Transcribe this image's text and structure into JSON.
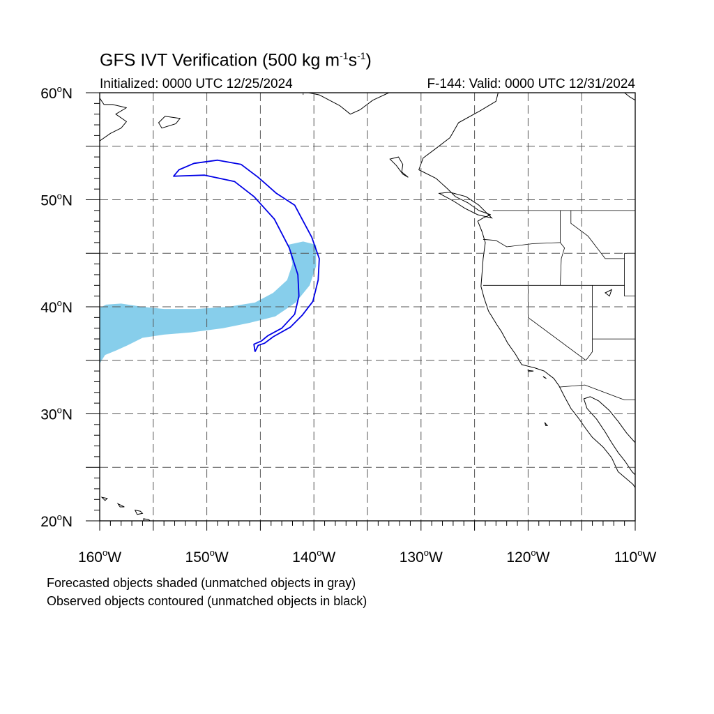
{
  "header": {
    "title_main": "GFS IVT Verification (500 kg m",
    "title_sup1": "-1",
    "title_mid": "s",
    "title_sup2": "-1",
    "title_end": ")",
    "initialized": "Initialized: 0000 UTC 12/25/2024",
    "valid": "F-144: Valid: 0000 UTC 12/31/2024"
  },
  "map": {
    "lon_range": [
      -160,
      -110
    ],
    "lat_range": [
      20,
      60
    ],
    "gridline_lons": [
      -155,
      -150,
      -145,
      -140,
      -135,
      -130,
      -125,
      -120,
      -115
    ],
    "gridline_lats": [
      25,
      30,
      35,
      40,
      45,
      50,
      55
    ],
    "lon_labels": [
      {
        "lon": -160,
        "deg": "160",
        "hemi": "W"
      },
      {
        "lon": -150,
        "deg": "150",
        "hemi": "W"
      },
      {
        "lon": -140,
        "deg": "140",
        "hemi": "W"
      },
      {
        "lon": -130,
        "deg": "130",
        "hemi": "W"
      },
      {
        "lon": -120,
        "deg": "120",
        "hemi": "W"
      },
      {
        "lon": -110,
        "deg": "110",
        "hemi": "W"
      }
    ],
    "lat_labels": [
      {
        "lat": 60,
        "deg": "60",
        "hemi": "N"
      },
      {
        "lat": 50,
        "deg": "50",
        "hemi": "N"
      },
      {
        "lat": 40,
        "deg": "40",
        "hemi": "N"
      },
      {
        "lat": 30,
        "deg": "30",
        "hemi": "N"
      },
      {
        "lat": 20,
        "deg": "20",
        "hemi": "N"
      }
    ],
    "forecast_color": "#87ceeb",
    "observed_color": "#0000e6",
    "forecast_object": [
      [
        -160,
        39.9
      ],
      [
        -159.4,
        40.2
      ],
      [
        -158,
        40.3
      ],
      [
        -156,
        40
      ],
      [
        -154,
        39.8
      ],
      [
        -151,
        39.8
      ],
      [
        -148,
        40
      ],
      [
        -145.5,
        40.4
      ],
      [
        -143.8,
        41.3
      ],
      [
        -142.5,
        42.5
      ],
      [
        -142,
        44
      ],
      [
        -142.4,
        45.8
      ],
      [
        -141,
        46.1
      ],
      [
        -139.8,
        45.8
      ],
      [
        -139.8,
        43.8
      ],
      [
        -140.4,
        42
      ],
      [
        -141.7,
        40.4
      ],
      [
        -143.6,
        39.1
      ],
      [
        -146,
        38.5
      ],
      [
        -148.5,
        38
      ],
      [
        -151.5,
        37.6
      ],
      [
        -154,
        37.4
      ],
      [
        -156,
        37.1
      ],
      [
        -157.4,
        36.4
      ],
      [
        -158.5,
        35.9
      ],
      [
        -159.5,
        35.5
      ],
      [
        -160,
        34.7
      ]
    ],
    "observed_object": [
      [
        -145.5,
        35.8
      ],
      [
        -145.6,
        36.5
      ],
      [
        -144.9,
        36.8
      ],
      [
        -144.3,
        37.3
      ],
      [
        -143,
        38
      ],
      [
        -141.8,
        39.3
      ],
      [
        -141.4,
        41
      ],
      [
        -141.5,
        43
      ],
      [
        -142.3,
        45.5
      ],
      [
        -143.7,
        48.2
      ],
      [
        -145.6,
        50.3
      ],
      [
        -147.4,
        51.7
      ],
      [
        -150.2,
        52.3
      ],
      [
        -153.1,
        52.2
      ],
      [
        -152.6,
        52.8
      ],
      [
        -151.2,
        53.4
      ],
      [
        -149,
        53.7
      ],
      [
        -146.8,
        53.3
      ],
      [
        -145.2,
        52.1
      ],
      [
        -143.5,
        50.6
      ],
      [
        -141.8,
        49.5
      ],
      [
        -141,
        48
      ],
      [
        -140.2,
        46.5
      ],
      [
        -139.5,
        44.5
      ],
      [
        -139.6,
        42.5
      ],
      [
        -140.1,
        40.5
      ],
      [
        -141.1,
        39.2
      ],
      [
        -142.2,
        38.1
      ],
      [
        -143.8,
        37.2
      ],
      [
        -144.6,
        36.6
      ],
      [
        -145.2,
        36.4
      ],
      [
        -145.5,
        35.8
      ]
    ],
    "coastlines": [
      [
        [
          -122.8,
          60
        ],
        [
          -123,
          59.2
        ],
        [
          -124.5,
          58.3
        ],
        [
          -126.5,
          57.2
        ],
        [
          -127.3,
          55.8
        ],
        [
          -128.6,
          54.8
        ],
        [
          -129.8,
          53.9
        ],
        [
          -130.2,
          52.8
        ],
        [
          -128.6,
          52
        ],
        [
          -127.5,
          51
        ],
        [
          -126.8,
          50.3
        ],
        [
          -125.6,
          49.7
        ],
        [
          -124.6,
          49
        ],
        [
          -123.5,
          48.6
        ],
        [
          -124.2,
          48.3
        ],
        [
          -124.7,
          48
        ],
        [
          -124.3,
          47
        ],
        [
          -124,
          46
        ],
        [
          -124.2,
          44.5
        ],
        [
          -124.3,
          43.2
        ],
        [
          -124.4,
          41.9
        ],
        [
          -124.1,
          40.8
        ],
        [
          -123.7,
          39.6
        ],
        [
          -122.9,
          38.3
        ],
        [
          -122.5,
          37.7
        ],
        [
          -121.9,
          36.6
        ],
        [
          -121.2,
          35.6
        ],
        [
          -120.6,
          34.6
        ],
        [
          -119.4,
          34.3
        ],
        [
          -118.5,
          34
        ],
        [
          -117.6,
          33.3
        ],
        [
          -117.1,
          32.6
        ],
        [
          -116.6,
          31.6
        ],
        [
          -116,
          30.5
        ],
        [
          -115.3,
          29.6
        ],
        [
          -114.6,
          28.6
        ],
        [
          -114,
          27.8
        ],
        [
          -113,
          26.9
        ],
        [
          -112.2,
          25.9
        ],
        [
          -111.6,
          24.6
        ],
        [
          -110.2,
          23.4
        ],
        [
          -110,
          23.1
        ]
      ],
      [
        [
          -110,
          27.3
        ],
        [
          -110.8,
          28.2
        ],
        [
          -111.6,
          29.3
        ],
        [
          -112.4,
          30.3
        ],
        [
          -113.4,
          31.2
        ],
        [
          -114.2,
          31.6
        ],
        [
          -114.8,
          31.4
        ],
        [
          -114.5,
          30.5
        ],
        [
          -113.6,
          29.5
        ],
        [
          -112.8,
          28.3
        ],
        [
          -112.2,
          27.3
        ],
        [
          -111.6,
          26.4
        ],
        [
          -110.9,
          25.5
        ],
        [
          -110.3,
          24.6
        ],
        [
          -110,
          24.3
        ]
      ],
      [
        [
          -133,
          60
        ],
        [
          -134.5,
          59.3
        ],
        [
          -135.7,
          58.4
        ],
        [
          -136.6,
          58
        ],
        [
          -137.6,
          58.8
        ],
        [
          -139.5,
          59.8
        ],
        [
          -140.5,
          60
        ]
      ],
      [
        [
          -160,
          55.5
        ],
        [
          -159,
          56.2
        ],
        [
          -158,
          56.7
        ],
        [
          -157.5,
          57.3
        ],
        [
          -158.5,
          58
        ],
        [
          -157.5,
          58.6
        ],
        [
          -158.8,
          58.9
        ],
        [
          -159.6,
          58.9
        ],
        [
          -160,
          59.5
        ]
      ],
      [
        [
          -110,
          59.3
        ],
        [
          -110.5,
          59.6
        ],
        [
          -111,
          60
        ]
      ]
    ],
    "islands": [
      [
        [
          -132.1,
          54
        ],
        [
          -131.7,
          53.3
        ],
        [
          -131.8,
          52.6
        ],
        [
          -131.2,
          52.1
        ],
        [
          -131.7,
          52.4
        ],
        [
          -132.3,
          53.2
        ],
        [
          -132.9,
          53.8
        ],
        [
          -132.1,
          54
        ]
      ],
      [
        [
          -123.4,
          48.3
        ],
        [
          -124.7,
          48.6
        ],
        [
          -125.9,
          49.2
        ],
        [
          -127,
          49.9
        ],
        [
          -128.3,
          50.6
        ],
        [
          -127.3,
          50.7
        ],
        [
          -125.8,
          50.3
        ],
        [
          -124.6,
          49.5
        ],
        [
          -123.4,
          48.3
        ]
      ],
      [
        [
          -153.9,
          57.8
        ],
        [
          -152.5,
          57.6
        ],
        [
          -152.9,
          57.1
        ],
        [
          -154.2,
          56.7
        ],
        [
          -154.5,
          57.2
        ],
        [
          -153.9,
          57.8
        ]
      ],
      [
        [
          -155.9,
          20.2
        ],
        [
          -155.4,
          20.1
        ],
        [
          -154.8,
          19.5
        ],
        [
          -155.5,
          19
        ],
        [
          -155.9,
          19.8
        ],
        [
          -155.9,
          20.2
        ]
      ],
      [
        [
          -156.7,
          21
        ],
        [
          -156.2,
          20.9
        ],
        [
          -156,
          20.7
        ],
        [
          -156.5,
          20.6
        ],
        [
          -156.7,
          21
        ]
      ],
      [
        [
          -158.3,
          21.6
        ],
        [
          -157.7,
          21.3
        ],
        [
          -158.1,
          21.3
        ],
        [
          -158.3,
          21.6
        ]
      ],
      [
        [
          -159.8,
          22.2
        ],
        [
          -159.3,
          22.1
        ],
        [
          -159.5,
          21.9
        ],
        [
          -159.8,
          22.2
        ]
      ],
      [
        [
          -118.6,
          33.5
        ],
        [
          -118.3,
          33.3
        ],
        [
          -118.5,
          33.4
        ],
        [
          -118.6,
          33.5
        ]
      ],
      [
        [
          -120,
          34.05
        ],
        [
          -119.5,
          34
        ],
        [
          -119.9,
          33.95
        ],
        [
          -120,
          34.05
        ]
      ],
      [
        [
          -118.45,
          29.2
        ],
        [
          -118.2,
          28.9
        ],
        [
          -118.35,
          28.9
        ],
        [
          -118.45,
          29.2
        ]
      ],
      [
        [
          -112.8,
          41.3
        ],
        [
          -112.2,
          41.6
        ],
        [
          -112.4,
          41
        ],
        [
          -112.8,
          41.3
        ]
      ]
    ],
    "borders": [
      [
        [
          -123.3,
          49
        ],
        [
          -110,
          49
        ]
      ],
      [
        [
          -141,
          60
        ],
        [
          -141,
          59.8
        ]
      ],
      [
        [
          -124.2,
          46.3
        ],
        [
          -123,
          46.2
        ],
        [
          -122,
          45.6
        ],
        [
          -119.5,
          45.9
        ],
        [
          -117,
          46
        ]
      ],
      [
        [
          -124.2,
          42
        ],
        [
          -111,
          42
        ]
      ],
      [
        [
          -120,
          42
        ],
        [
          -120,
          39
        ],
        [
          -114.6,
          35
        ]
      ],
      [
        [
          -117,
          49
        ],
        [
          -117,
          46
        ],
        [
          -116.6,
          45.5
        ],
        [
          -116.9,
          44.5
        ],
        [
          -117,
          42
        ]
      ],
      [
        [
          -116,
          49
        ],
        [
          -116,
          47.8
        ],
        [
          -114.4,
          46.6
        ],
        [
          -112.8,
          44.5
        ],
        [
          -111,
          44.5
        ]
      ],
      [
        [
          -114,
          42
        ],
        [
          -114,
          35.8
        ],
        [
          -114.6,
          35
        ]
      ],
      [
        [
          -111,
          45
        ],
        [
          -110,
          45
        ]
      ],
      [
        [
          -111,
          45
        ],
        [
          -111,
          41
        ],
        [
          -110,
          41
        ]
      ],
      [
        [
          -114,
          37
        ],
        [
          -110,
          37
        ]
      ],
      [
        [
          -117.1,
          32.5
        ],
        [
          -114.7,
          32.7
        ],
        [
          -111,
          31.3
        ],
        [
          -110,
          31.3
        ]
      ]
    ]
  },
  "captions": {
    "line1": "Forecasted objects shaded (unmatched objects in gray)",
    "line2": "Observed objects contoured (unmatched objects in black)"
  }
}
